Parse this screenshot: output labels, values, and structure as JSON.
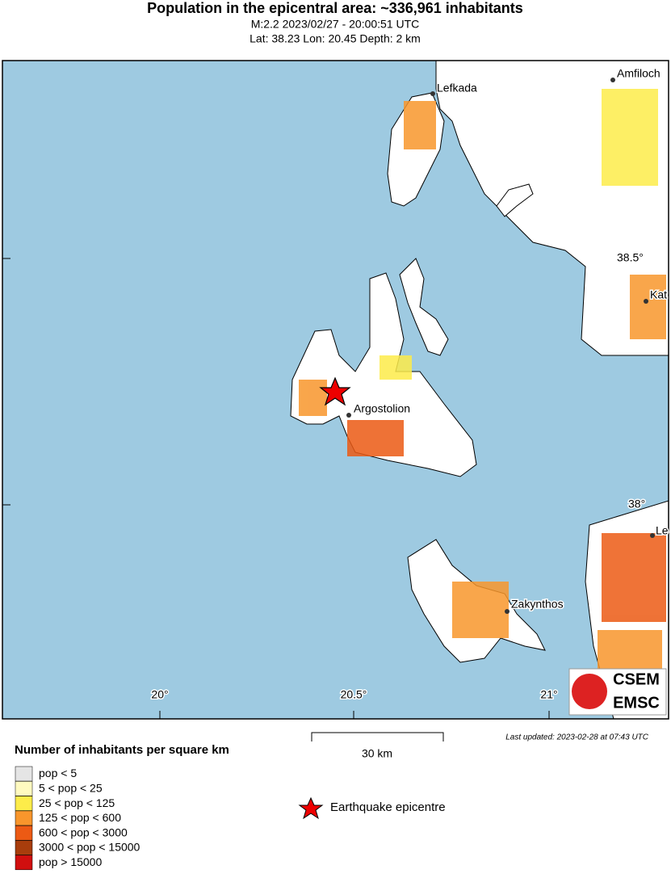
{
  "header": {
    "title": "Population in the epicentral area: ~336,961 inhabitants",
    "subtitle": "M:2.2 2023/02/27 - 20:00:51 UTC",
    "location": "Lat: 38.23 Lon: 20.45 Depth: 2 km"
  },
  "map": {
    "places": [
      "Lefkada",
      "Amfiloch",
      "Kat",
      "Argostolion",
      "Zakynthos",
      "Le"
    ],
    "lat_labels": [
      "38.5°",
      "38°"
    ],
    "lon_labels": [
      "20°",
      "20.5°",
      "21°"
    ],
    "logo": [
      "CSEM",
      "EMSC"
    ]
  },
  "scale": "30 km",
  "updated": "Last updated: 2023-02-28 at 07:43 UTC",
  "legend": {
    "title": "Number of inhabitants per square km",
    "entries": [
      {
        "label": "pop < 5",
        "color": "#e5e5e5"
      },
      {
        "label": "5 < pop < 25",
        "color": "#fffac0"
      },
      {
        "label": "25 < pop < 125",
        "color": "#fdec4a"
      },
      {
        "label": "125 < pop < 600",
        "color": "#f8962c"
      },
      {
        "label": "600 < pop < 3000",
        "color": "#ec5a14"
      },
      {
        "label": "3000 < pop < 15000",
        "color": "#a83d0c"
      },
      {
        "label": "pop > 15000",
        "color": "#d10f0f"
      }
    ]
  },
  "epicentre": "Earthquake epicentre"
}
